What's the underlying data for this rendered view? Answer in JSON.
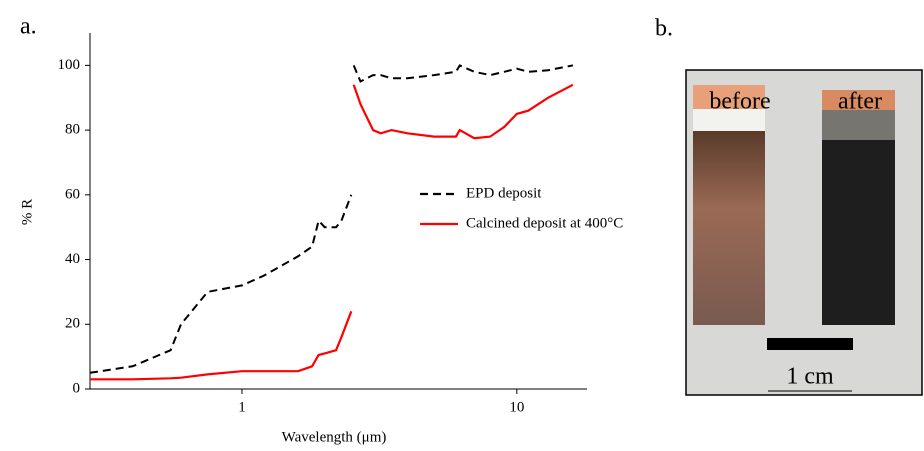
{
  "chart_data": {
    "type": "line",
    "panel_label": "a.",
    "x_label": "Wavelength (μm)",
    "y_label": "% R",
    "x_scale": "log",
    "xlim": [
      0.28,
      18
    ],
    "xticks": [
      1,
      10
    ],
    "ylim": [
      0,
      110
    ],
    "yticks": [
      0,
      20,
      40,
      60,
      80,
      100
    ],
    "legend": "upper-right",
    "x": [
      0.28,
      0.4,
      0.55,
      0.6,
      0.75,
      1.0,
      1.2,
      1.6,
      1.8,
      1.9,
      2.0,
      2.2,
      2.3,
      2.5,
      2.52,
      2.55,
      2.7,
      3.0,
      3.2,
      3.5,
      4,
      5,
      6,
      6.2,
      7,
      8,
      9,
      10,
      11,
      13,
      16
    ],
    "series": [
      {
        "name": "EPD deposit",
        "color": "#000000",
        "dash": "dashed",
        "values": [
          5,
          7,
          12,
          20,
          30,
          32,
          35,
          41,
          44,
          52,
          50,
          50,
          52,
          60,
          null,
          100,
          95,
          97,
          97,
          96,
          96,
          97,
          98,
          100,
          98,
          97,
          98,
          99,
          98,
          98.5,
          100
        ]
      },
      {
        "name": "Calcined deposit at 400°C",
        "color": "#ff0000",
        "dash": "solid",
        "values": [
          3,
          3,
          3.3,
          3.5,
          4.5,
          5.5,
          5.5,
          5.5,
          7,
          10.5,
          11,
          12,
          16,
          24,
          null,
          94,
          88,
          80,
          79,
          80,
          79,
          78,
          78,
          80,
          77.5,
          78,
          81,
          85,
          86,
          90,
          94
        ]
      }
    ]
  },
  "photo": {
    "panel_label": "b.",
    "labels": [
      "before",
      "after"
    ],
    "scale_bar": "1 cm"
  }
}
